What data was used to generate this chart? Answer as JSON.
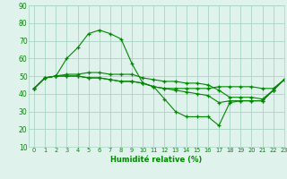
{
  "x": [
    0,
    1,
    2,
    3,
    4,
    5,
    6,
    7,
    8,
    9,
    10,
    11,
    12,
    13,
    14,
    15,
    16,
    17,
    18,
    19,
    20,
    21,
    22,
    23
  ],
  "line1": [
    43,
    49,
    50,
    60,
    66,
    74,
    76,
    74,
    71,
    57,
    46,
    44,
    43,
    43,
    43,
    43,
    43,
    44,
    44,
    44,
    44,
    43,
    43,
    48
  ],
  "line2": [
    43,
    49,
    50,
    51,
    51,
    52,
    52,
    51,
    51,
    51,
    49,
    48,
    47,
    47,
    46,
    46,
    45,
    42,
    38,
    38,
    38,
    37,
    42,
    48
  ],
  "line3": [
    43,
    49,
    50,
    50,
    50,
    49,
    49,
    48,
    47,
    47,
    46,
    44,
    43,
    42,
    41,
    40,
    39,
    35,
    36,
    36,
    36,
    36,
    42,
    48
  ],
  "line4": [
    43,
    49,
    50,
    50,
    50,
    49,
    49,
    48,
    47,
    47,
    46,
    44,
    37,
    30,
    27,
    27,
    27,
    22,
    35,
    36,
    36,
    36,
    42,
    48
  ],
  "background_color": "#dff2ec",
  "grid_color": "#aad4c8",
  "line_color": "#008800",
  "xlabel": "Humidité relative (%)",
  "ylim": [
    10,
    90
  ],
  "xlim": [
    -0.5,
    23
  ],
  "yticks": [
    10,
    20,
    30,
    40,
    50,
    60,
    70,
    80,
    90
  ],
  "xticks": [
    0,
    1,
    2,
    3,
    4,
    5,
    6,
    7,
    8,
    9,
    10,
    11,
    12,
    13,
    14,
    15,
    16,
    17,
    18,
    19,
    20,
    21,
    22,
    23
  ]
}
